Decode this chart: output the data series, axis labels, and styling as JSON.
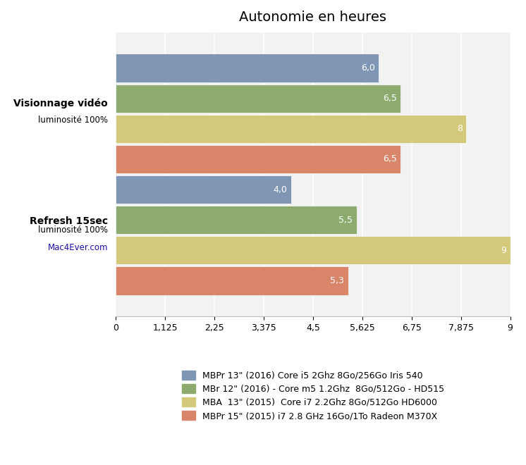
{
  "title": "Autonomie en heures",
  "series": [
    {
      "label": "MBPr 13\" (2016) Core i5 2Ghz 8Go/256Go Iris 540",
      "color": "#7f97b4",
      "values": [
        6.0,
        4.0
      ]
    },
    {
      "label": "MBr 12\" (2016) - Core m5 1.2Ghz  8Go/512Go - HD515",
      "color": "#8dab6e",
      "values": [
        6.5,
        5.5
      ]
    },
    {
      "label": "MBA  13\" (2015)  Core i7 2.2Ghz 8Go/512Go HD6000",
      "color": "#d4c87a",
      "values": [
        8.0,
        9.0
      ]
    },
    {
      "label": "MBPr 15\" (2015) i7 2.8 GHz 16Go/1To Radeon M370X",
      "color": "#d8856a",
      "values": [
        6.5,
        5.3
      ]
    }
  ],
  "group_labels_line1": [
    "Visionnage vidéo",
    "Refresh 15sec"
  ],
  "group_labels_line2": [
    "luminosité 100%",
    "luminosité 100%"
  ],
  "group_labels_line3": [
    null,
    "Mac4Ever.com"
  ],
  "xlim": [
    0,
    9
  ],
  "xticks": [
    0,
    1.125,
    2.25,
    3.375,
    4.5,
    5.625,
    6.75,
    7.875,
    9
  ],
  "xtick_labels": [
    "0",
    "1,125",
    "2,25",
    "3,375",
    "4,5",
    "5,625",
    "6,75",
    "7,875",
    "9"
  ],
  "value_labels": [
    [
      "6,0",
      "4,0"
    ],
    [
      "6,5",
      "5,5"
    ],
    [
      "8",
      "9"
    ],
    [
      "6,5",
      "5,3"
    ]
  ],
  "background_color": "#f2f2f2",
  "bar_height": 0.18,
  "title_fontsize": 14,
  "value_fontsize": 9,
  "legend_fontsize": 9,
  "group_centers": [
    0.72,
    0.0
  ]
}
